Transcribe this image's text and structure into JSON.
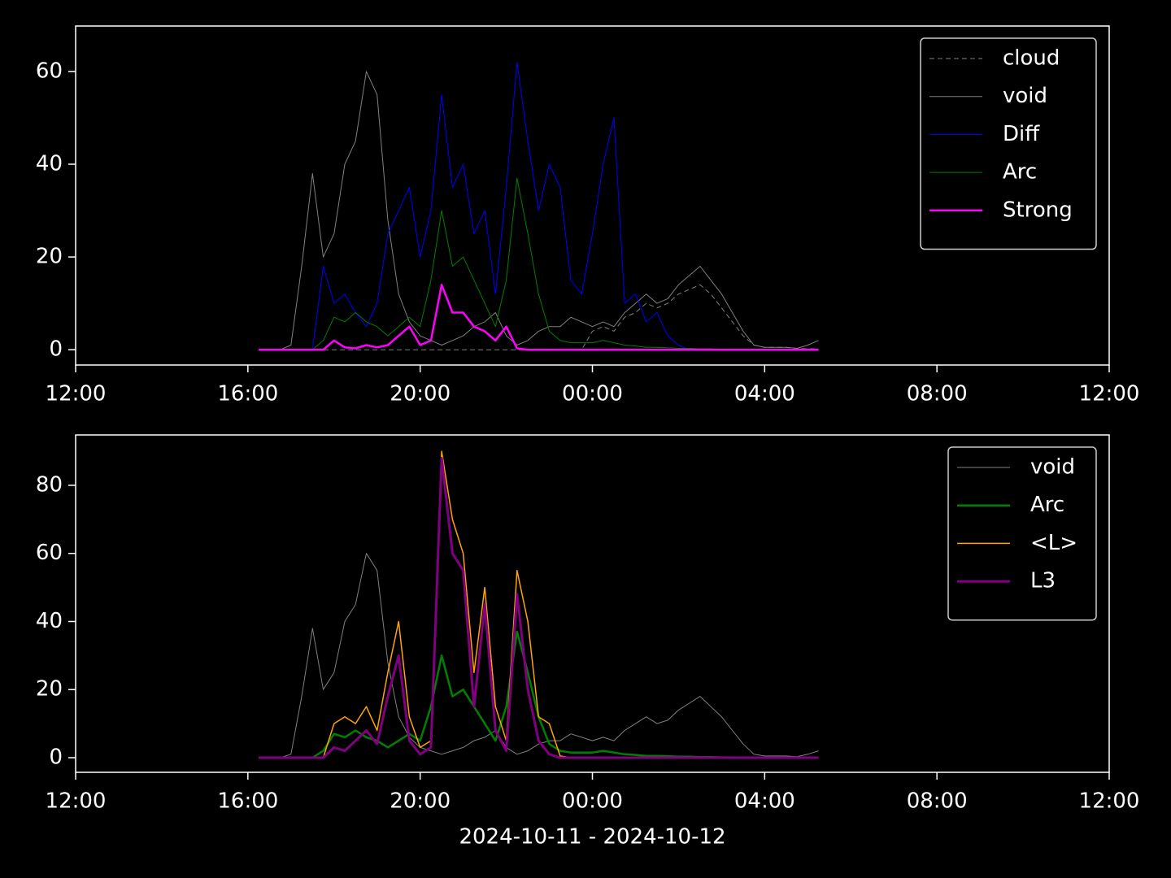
{
  "chart_data": [
    {
      "type": "line",
      "x": [
        16.25,
        16.5,
        16.75,
        17.0,
        17.25,
        17.5,
        17.75,
        18.0,
        18.25,
        18.5,
        18.75,
        19.0,
        19.25,
        19.5,
        19.75,
        20.0,
        20.25,
        20.5,
        20.75,
        21.0,
        21.25,
        21.5,
        21.75,
        22.0,
        22.25,
        22.5,
        22.75,
        23.0,
        23.25,
        23.5,
        23.75,
        24.0,
        24.25,
        24.5,
        24.75,
        25.0,
        25.25,
        25.5,
        25.75,
        26.0,
        26.25,
        26.5,
        26.75,
        27.0,
        27.25,
        27.5,
        27.75,
        28.0,
        28.25,
        28.5,
        28.75,
        29.0,
        29.25
      ],
      "xlim": [
        12,
        36
      ],
      "xticks": [
        {
          "value": 12,
          "label": "12:00"
        },
        {
          "value": 16,
          "label": "16:00"
        },
        {
          "value": 20,
          "label": "20:00"
        },
        {
          "value": 24,
          "label": "00:00"
        },
        {
          "value": 28,
          "label": "04:00"
        },
        {
          "value": 32,
          "label": "08:00"
        },
        {
          "value": 36,
          "label": "12:00"
        }
      ],
      "ylim": [
        -3.3,
        69.8
      ],
      "yticks": [
        0,
        20,
        40,
        60
      ],
      "legend": "upper right",
      "series": [
        {
          "name": "cloud",
          "color": "#808080",
          "linewidth": 1,
          "linestyle": "dashed",
          "values": [
            0,
            0,
            0,
            0,
            0,
            0,
            0,
            0,
            0,
            0,
            0,
            0,
            0,
            0,
            0,
            0,
            0,
            0,
            0,
            0,
            0,
            0,
            0,
            0,
            0,
            0,
            0,
            0,
            0,
            0,
            0,
            4,
            5,
            4,
            7,
            8,
            10,
            9,
            10,
            12,
            13,
            14,
            12,
            9,
            6,
            3,
            1,
            0.5,
            0.5,
            0.5,
            0.3,
            0.2,
            0.2
          ]
        },
        {
          "name": "void",
          "color": "#808080",
          "linewidth": 1,
          "linestyle": "solid",
          "values": [
            0,
            0,
            0,
            1,
            18,
            38,
            20,
            25,
            40,
            45,
            60,
            55,
            28,
            12,
            6,
            3,
            2,
            1,
            2,
            3,
            5,
            6,
            8,
            3,
            1,
            2,
            4,
            5,
            5,
            7,
            6,
            5,
            6,
            5,
            8,
            10,
            12,
            10,
            11,
            14,
            16,
            18,
            15,
            12,
            8,
            4,
            1,
            0.5,
            0.5,
            0.5,
            0.3,
            1,
            2
          ]
        },
        {
          "name": "Diff",
          "color": "#0000ff",
          "linewidth": 1,
          "linestyle": "solid",
          "values": [
            0,
            0,
            0,
            0,
            0,
            0,
            18,
            10,
            12,
            8,
            5,
            10,
            25,
            30,
            35,
            20,
            30,
            55,
            35,
            40,
            25,
            30,
            12,
            35,
            62,
            45,
            30,
            40,
            35,
            15,
            12,
            25,
            40,
            50,
            10,
            12,
            6,
            8,
            3,
            1,
            0,
            0,
            0,
            0,
            0,
            0,
            0,
            0,
            0,
            0,
            0,
            0,
            0
          ]
        },
        {
          "name": "Arc",
          "color": "#008000",
          "linewidth": 1,
          "linestyle": "solid",
          "values": [
            0,
            0,
            0,
            0,
            0,
            0,
            2,
            7,
            6,
            8,
            6,
            5,
            3,
            5,
            7,
            5,
            15,
            30,
            18,
            20,
            15,
            10,
            5,
            15,
            37,
            25,
            12,
            4,
            2,
            1.5,
            1.5,
            1.5,
            2,
            1.5,
            1,
            0.8,
            0.5,
            0.5,
            0.4,
            0.3,
            0.3,
            0.2,
            0.2,
            0.1,
            0.1,
            0,
            0,
            0,
            0,
            0,
            0,
            0,
            0
          ]
        },
        {
          "name": "Strong",
          "color": "#ff00ff",
          "linewidth": 2.5,
          "linestyle": "solid",
          "values": [
            0,
            0,
            0,
            0,
            0,
            0,
            0,
            2,
            0.5,
            0.3,
            1,
            0.5,
            1,
            3,
            5,
            1,
            2,
            14,
            8,
            8,
            5,
            4,
            2,
            5,
            0.3,
            0,
            0,
            0,
            0,
            0,
            0,
            0,
            0,
            0,
            0,
            0,
            0,
            0,
            0,
            0,
            0,
            0,
            0,
            0,
            0,
            0,
            0,
            0,
            0,
            0,
            0,
            0,
            0
          ]
        }
      ]
    },
    {
      "type": "line",
      "x": [
        16.25,
        16.5,
        16.75,
        17.0,
        17.25,
        17.5,
        17.75,
        18.0,
        18.25,
        18.5,
        18.75,
        19.0,
        19.25,
        19.5,
        19.75,
        20.0,
        20.25,
        20.5,
        20.75,
        21.0,
        21.25,
        21.5,
        21.75,
        22.0,
        22.25,
        22.5,
        22.75,
        23.0,
        23.25,
        23.5,
        23.75,
        24.0,
        24.25,
        24.5,
        24.75,
        25.0,
        25.25,
        25.5,
        25.75,
        26.0,
        26.25,
        26.5,
        26.75,
        27.0,
        27.25,
        27.5,
        27.75,
        28.0,
        28.25,
        28.5,
        28.75,
        29.0,
        29.25
      ],
      "xlim": [
        12,
        36
      ],
      "xticks": [
        {
          "value": 12,
          "label": "12:00"
        },
        {
          "value": 16,
          "label": "16:00"
        },
        {
          "value": 20,
          "label": "20:00"
        },
        {
          "value": 24,
          "label": "00:00"
        },
        {
          "value": 28,
          "label": "04:00"
        },
        {
          "value": 32,
          "label": "08:00"
        },
        {
          "value": 36,
          "label": "12:00"
        }
      ],
      "xlabel": "2024-10-11 - 2024-10-12",
      "ylim": [
        -4.3,
        94.8
      ],
      "yticks": [
        0,
        20,
        40,
        60,
        80
      ],
      "legend": "upper right",
      "series": [
        {
          "name": "void",
          "color": "#808080",
          "linewidth": 1,
          "linestyle": "solid",
          "values": [
            0,
            0,
            0,
            1,
            18,
            38,
            20,
            25,
            40,
            45,
            60,
            55,
            28,
            12,
            6,
            3,
            2,
            1,
            2,
            3,
            5,
            6,
            8,
            3,
            1,
            2,
            4,
            5,
            5,
            7,
            6,
            5,
            6,
            5,
            8,
            10,
            12,
            10,
            11,
            14,
            16,
            18,
            15,
            12,
            8,
            4,
            1,
            0.5,
            0.5,
            0.5,
            0.3,
            1,
            2
          ]
        },
        {
          "name": "Arc",
          "color": "#008000",
          "linewidth": 2.5,
          "linestyle": "solid",
          "values": [
            0,
            0,
            0,
            0,
            0,
            0,
            2,
            7,
            6,
            8,
            6,
            5,
            3,
            5,
            7,
            5,
            15,
            30,
            18,
            20,
            15,
            10,
            5,
            15,
            37,
            25,
            12,
            4,
            2,
            1.5,
            1.5,
            1.5,
            2,
            1.5,
            1,
            0.8,
            0.5,
            0.5,
            0.4,
            0.3,
            0.3,
            0.2,
            0.2,
            0.1,
            0.1,
            0,
            0,
            0,
            0,
            0,
            0,
            0,
            0
          ]
        },
        {
          "name": "<L>",
          "color": "#ffa500",
          "linewidth": 1.5,
          "linestyle": "solid",
          "values": [
            0,
            0,
            0,
            0,
            0,
            0,
            0,
            10,
            12,
            10,
            15,
            8,
            25,
            40,
            12,
            3,
            5,
            90,
            70,
            60,
            25,
            50,
            15,
            5,
            55,
            40,
            12,
            10,
            0.5,
            0,
            0,
            0,
            0,
            0,
            0,
            0,
            0,
            0,
            0,
            0,
            0,
            0,
            0,
            0,
            0,
            0,
            0,
            0,
            0,
            0,
            0,
            0,
            0
          ]
        },
        {
          "name": "L3",
          "color": "#800080",
          "linewidth": 3,
          "linestyle": "solid",
          "values": [
            0,
            0,
            0,
            0,
            0,
            0,
            0,
            3,
            2,
            5,
            8,
            4,
            18,
            30,
            5,
            1,
            3,
            88,
            60,
            55,
            15,
            45,
            8,
            2,
            48,
            20,
            5,
            1,
            0,
            0,
            0,
            0,
            0,
            0,
            0,
            0,
            0,
            0,
            0,
            0,
            0,
            0,
            0,
            0,
            0,
            0,
            0,
            0,
            0,
            0,
            0,
            0,
            0
          ]
        }
      ]
    }
  ]
}
